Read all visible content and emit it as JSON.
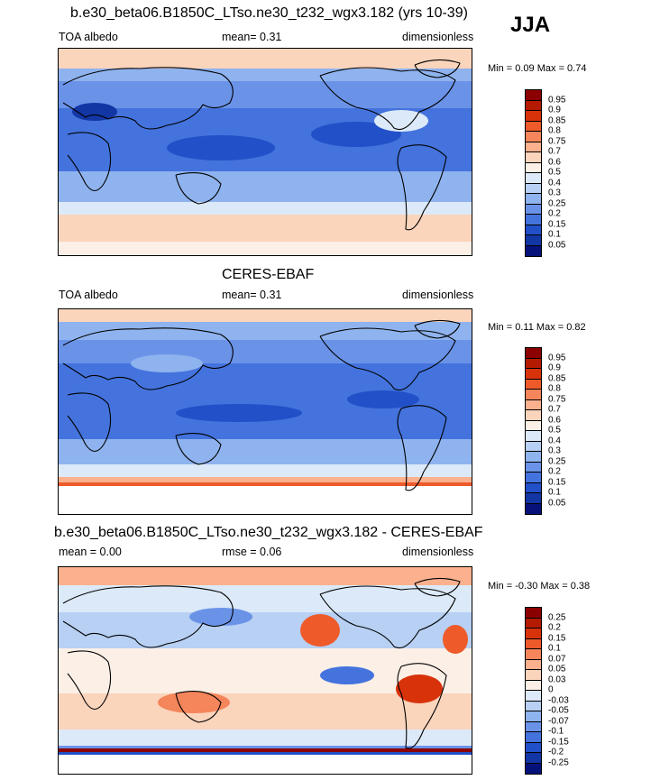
{
  "season_label": "JJA",
  "panels": [
    {
      "title": "b.e30_beta06.B1850C_LTso.ne30_t232_wgx3.182 (yrs 10-39)",
      "left_label": "TOA albedo",
      "center_label": "mean=  0.31",
      "right_label": "dimensionless",
      "minmax": "Min =  0.09 Max =  0.74",
      "colorbar": {
        "levels": [
          "0.95",
          "0.9",
          "0.85",
          "0.8",
          "0.75",
          "0.7",
          "0.6",
          "0.5",
          "0.4",
          "0.3",
          "0.25",
          "0.2",
          "0.15",
          "0.1",
          "0.05"
        ],
        "colors": [
          "#8b0000",
          "#b41a00",
          "#d8320b",
          "#ee5a2a",
          "#f5855a",
          "#fbb18e",
          "#fbd4bc",
          "#fcefe6",
          "#dce9f8",
          "#b7d0f3",
          "#8fb3ee",
          "#6a93e8",
          "#4473dd",
          "#2150c8",
          "#1336a5",
          "#06127a"
        ]
      }
    },
    {
      "title": "CERES-EBAF",
      "left_label": "TOA albedo",
      "center_label": "mean=  0.31",
      "right_label": "dimensionless",
      "minmax": "Min =  0.11 Max =  0.82",
      "colorbar": {
        "levels": [
          "0.95",
          "0.9",
          "0.85",
          "0.8",
          "0.75",
          "0.7",
          "0.6",
          "0.5",
          "0.4",
          "0.3",
          "0.25",
          "0.2",
          "0.15",
          "0.1",
          "0.05"
        ],
        "colors": [
          "#8b0000",
          "#b41a00",
          "#d8320b",
          "#ee5a2a",
          "#f5855a",
          "#fbb18e",
          "#fbd4bc",
          "#fcefe6",
          "#dce9f8",
          "#b7d0f3",
          "#8fb3ee",
          "#6a93e8",
          "#4473dd",
          "#2150c8",
          "#1336a5",
          "#06127a"
        ]
      }
    },
    {
      "title": "b.e30_beta06.B1850C_LTso.ne30_t232_wgx3.182 - CERES-EBAF",
      "left_label": "mean =  0.00",
      "center_label": "rmse =  0.06",
      "right_label": "dimensionless",
      "minmax": "Min =  -0.30 Max =  0.38",
      "colorbar": {
        "levels": [
          "0.25",
          "0.2",
          "0.15",
          "0.1",
          "0.07",
          "0.05",
          "0.03",
          "0",
          "-0.03",
          "-0.05",
          "-0.07",
          "-0.1",
          "-0.15",
          "-0.2",
          "-0.25"
        ],
        "colors": [
          "#8b0000",
          "#b41a00",
          "#d8320b",
          "#ee5a2a",
          "#f5855a",
          "#fbb18e",
          "#fbd4bc",
          "#fcefe6",
          "#dce9f8",
          "#b7d0f3",
          "#8fb3ee",
          "#6a93e8",
          "#4473dd",
          "#2150c8",
          "#1336a5",
          "#06127a"
        ]
      }
    }
  ]
}
